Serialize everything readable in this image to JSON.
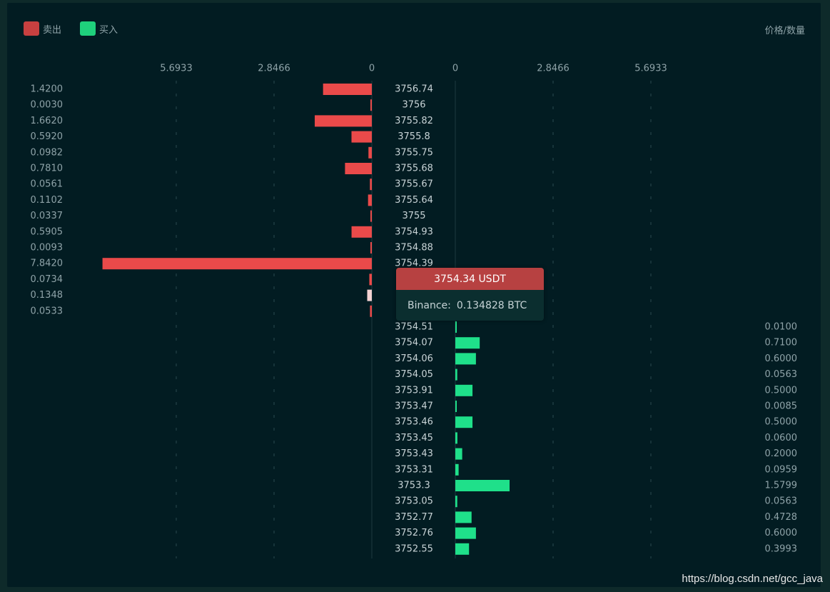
{
  "legend": {
    "sell_label": "卖出",
    "buy_label": "买入",
    "sell_color": "#c84040",
    "buy_color": "#1fd07c"
  },
  "unit_label": "价格/数量",
  "tooltip": {
    "price": "3754.34 USDT",
    "exchange": "Binance:",
    "amount": "0.134828 BTC"
  },
  "watermark": "https://blog.csdn.net/gcc_java",
  "chart_data": {
    "type": "bar",
    "axis_ticks": [
      "5.6933",
      "2.8466",
      "0"
    ],
    "axis_max": 7.85,
    "grid": "vertical-dashed",
    "asks": {
      "color": "#ea4a4a",
      "prices": [
        "3756.74",
        "3756",
        "3755.82",
        "3755.8",
        "3755.75",
        "3755.68",
        "3755.67",
        "3755.64",
        "3755",
        "3754.93",
        "3754.88",
        "3754.39",
        "",
        "",
        ""
      ],
      "amounts": [
        "1.4200",
        "0.0030",
        "1.6620",
        "0.5920",
        "0.0982",
        "0.7810",
        "0.0561",
        "0.1102",
        "0.0337",
        "0.5905",
        "0.0093",
        "7.8420",
        "0.0734",
        "0.1348",
        "0.0533"
      ],
      "values": [
        1.42,
        0.003,
        1.662,
        0.592,
        0.0982,
        0.781,
        0.0561,
        0.1102,
        0.0337,
        0.5905,
        0.0093,
        7.842,
        0.0734,
        0.1348,
        0.0533
      ],
      "highlight_index": 13
    },
    "bids": {
      "color": "#1fe08a",
      "prices": [
        "3754.51",
        "3754.07",
        "3754.06",
        "3754.05",
        "3753.91",
        "3753.47",
        "3753.46",
        "3753.45",
        "3753.43",
        "3753.31",
        "3753.3",
        "3753.05",
        "3752.77",
        "3752.76",
        "3752.55"
      ],
      "amounts": [
        "0.0100",
        "0.7100",
        "0.6000",
        "0.0563",
        "0.5000",
        "0.0085",
        "0.5000",
        "0.0600",
        "0.2000",
        "0.0959",
        "1.5799",
        "0.0563",
        "0.4728",
        "0.6000",
        "0.3993"
      ],
      "values": [
        0.01,
        0.71,
        0.6,
        0.0563,
        0.5,
        0.0085,
        0.5,
        0.06,
        0.2,
        0.0959,
        1.5799,
        0.0563,
        0.4728,
        0.6,
        0.3993
      ]
    }
  }
}
